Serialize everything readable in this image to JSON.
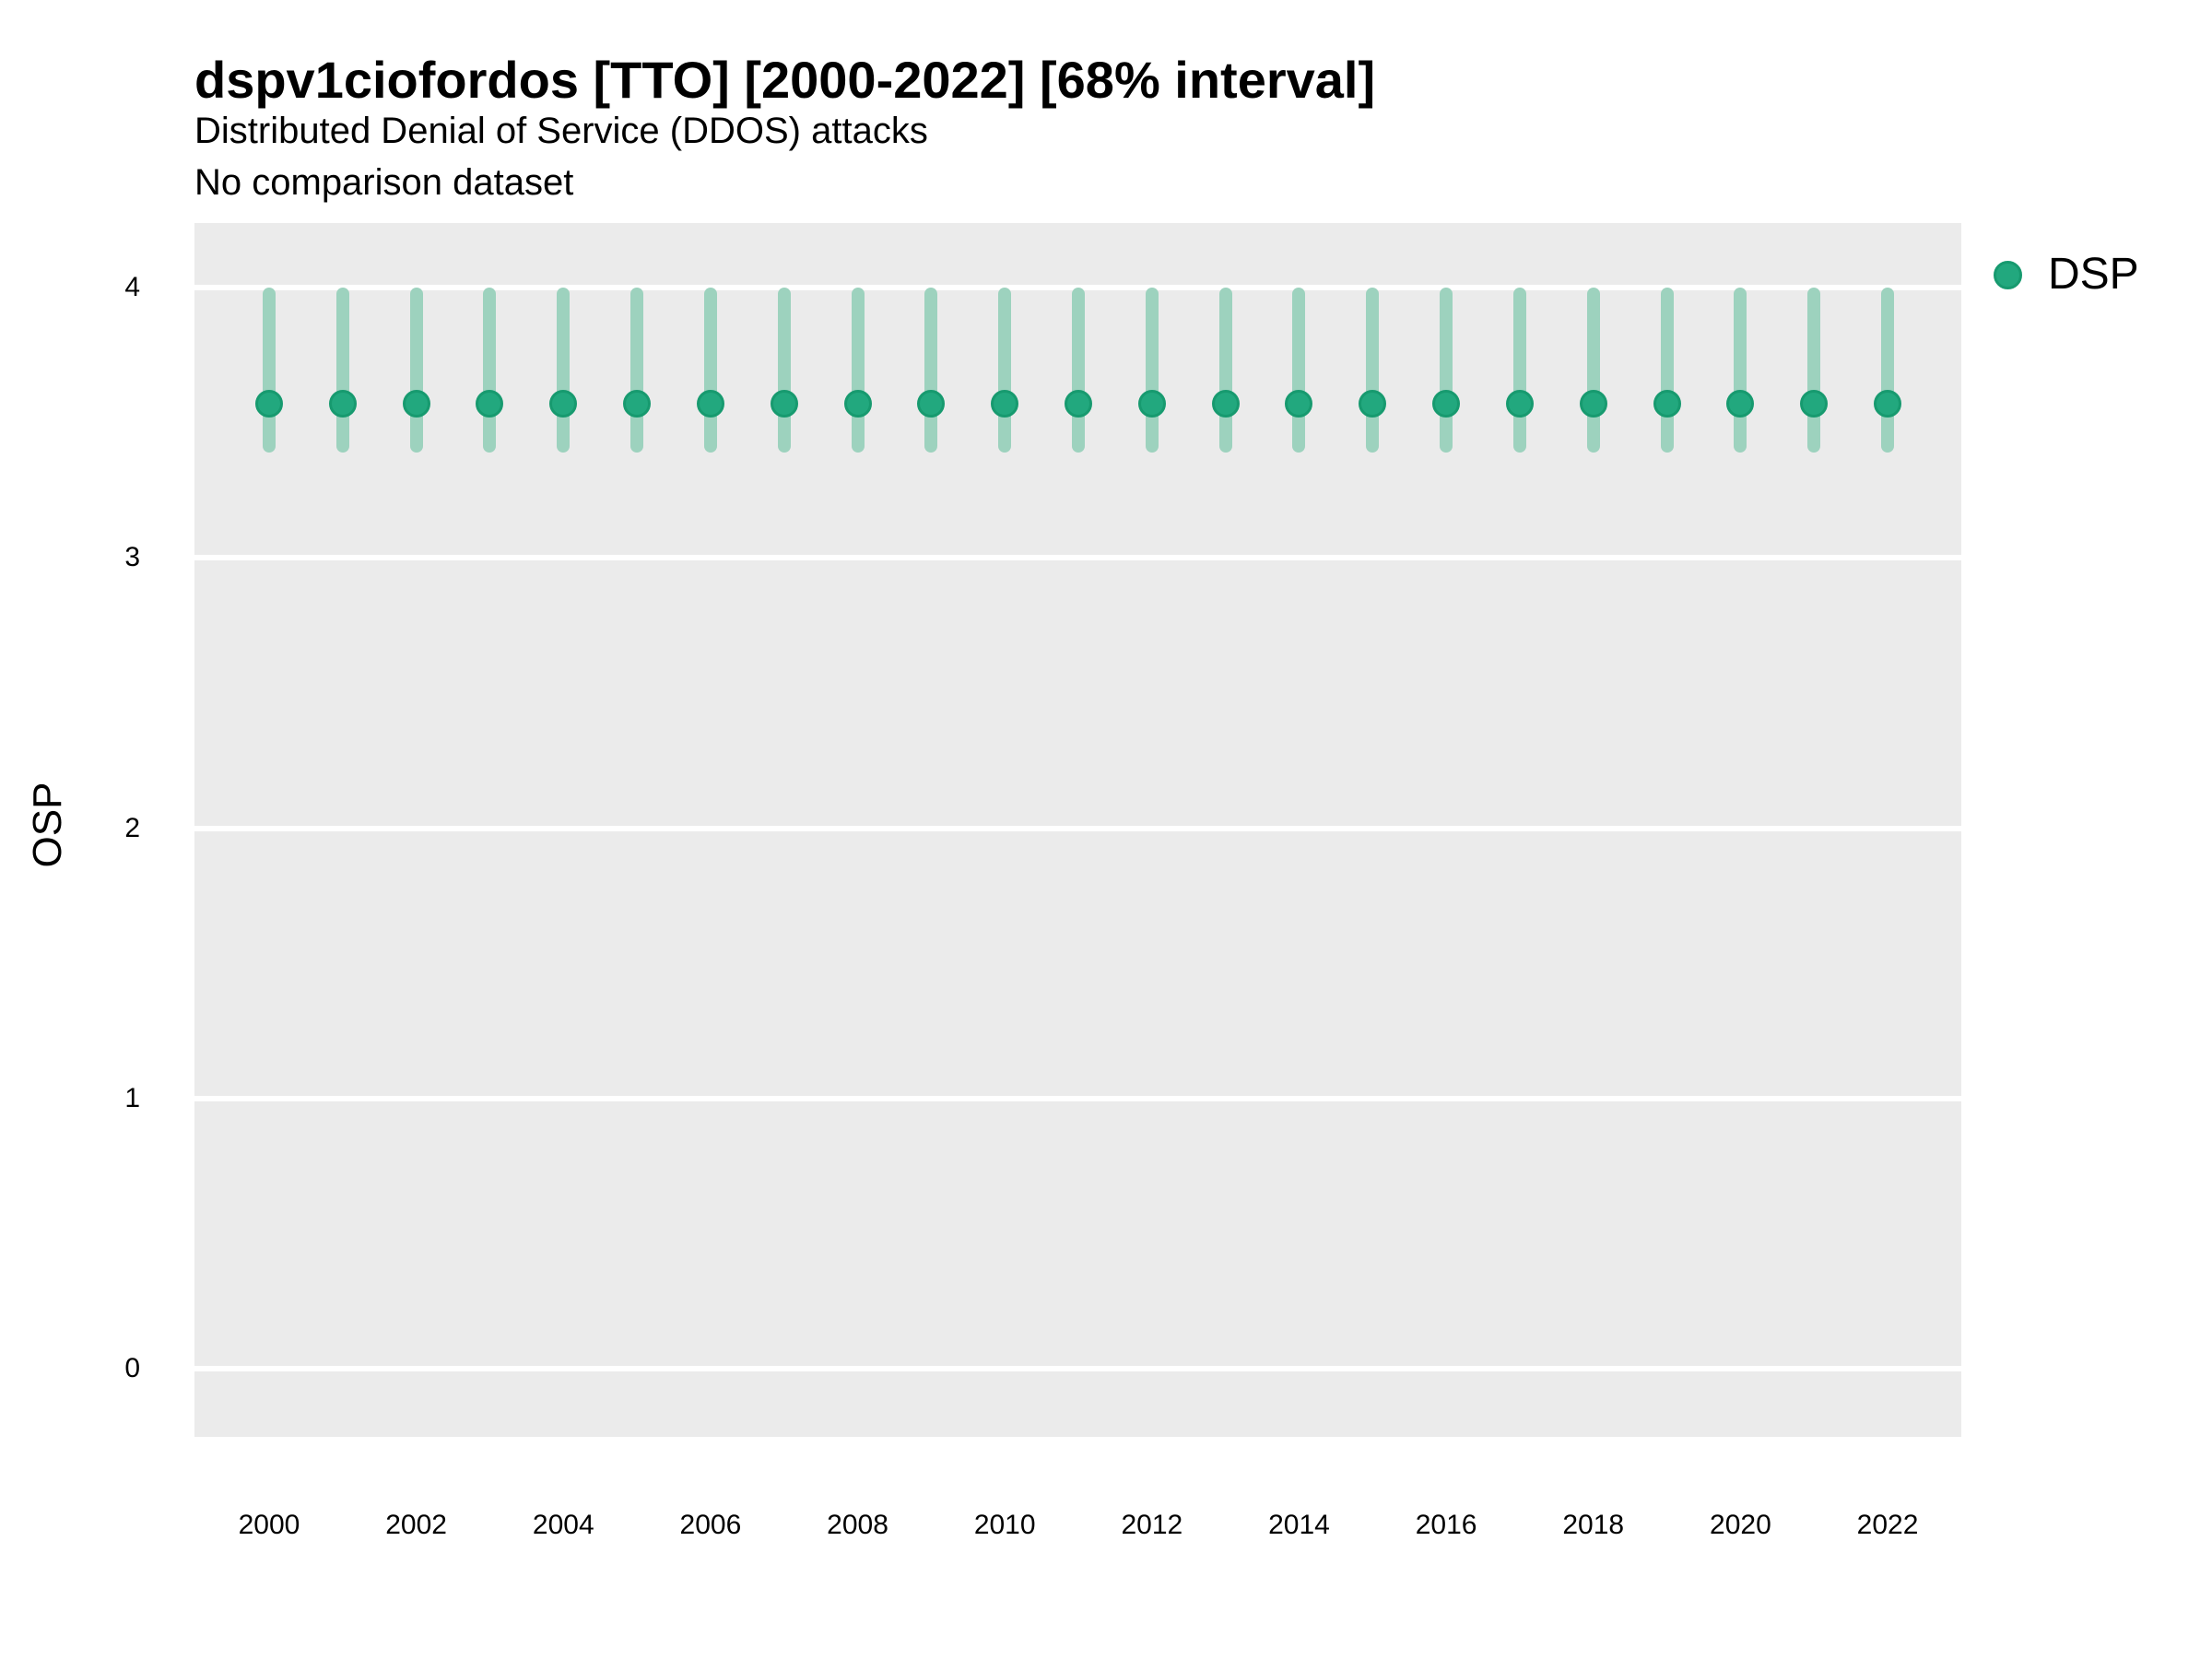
{
  "header": {
    "title": "dspv1ciofordos [TTO] [2000-2022] [68% interval]",
    "subtitle": "Distributed Denial of Service (DDOS) attacks",
    "comparison_note": "No comparison dataset"
  },
  "legend": {
    "items": [
      {
        "label": "DSP",
        "color": "#22a87e",
        "border_color": "#179a6f"
      }
    ]
  },
  "chart_data": {
    "type": "scatter",
    "subtype": "pointrange",
    "title": "dspv1ciofordos [TTO] [2000-2022] [68% interval]",
    "subtitle": "Distributed Denial of Service (DDOS) attacks",
    "annotation": "No comparison dataset",
    "xlabel": "",
    "ylabel": "OSP",
    "interval": "68%",
    "x": [
      2000,
      2001,
      2002,
      2003,
      2004,
      2005,
      2006,
      2007,
      2008,
      2009,
      2010,
      2011,
      2012,
      2013,
      2014,
      2015,
      2016,
      2017,
      2018,
      2019,
      2020,
      2021,
      2022
    ],
    "series": [
      {
        "name": "DSP",
        "values": [
          3.57,
          3.57,
          3.57,
          3.57,
          3.57,
          3.57,
          3.57,
          3.57,
          3.57,
          3.57,
          3.57,
          3.57,
          3.57,
          3.57,
          3.57,
          3.57,
          3.57,
          3.57,
          3.57,
          3.57,
          3.57,
          3.57,
          3.57
        ],
        "lower": [
          3.39,
          3.39,
          3.39,
          3.39,
          3.39,
          3.39,
          3.39,
          3.39,
          3.39,
          3.39,
          3.39,
          3.39,
          3.39,
          3.39,
          3.39,
          3.39,
          3.39,
          3.39,
          3.39,
          3.39,
          3.39,
          3.39,
          3.39
        ],
        "upper": [
          4.0,
          4.0,
          4.0,
          4.0,
          4.0,
          4.0,
          4.0,
          4.0,
          4.0,
          4.0,
          4.0,
          4.0,
          4.0,
          4.0,
          4.0,
          4.0,
          4.0,
          4.0,
          4.0,
          4.0,
          4.0,
          4.0,
          4.0
        ]
      }
    ],
    "yticks": [
      4,
      3,
      2,
      1,
      0
    ],
    "xticks": [
      2000,
      2002,
      2004,
      2006,
      2008,
      2010,
      2012,
      2014,
      2016,
      2018,
      2020,
      2022
    ],
    "ylim": [
      -0.25,
      4.24
    ],
    "grid": "horizontal-major-only",
    "legend_position": "top-right",
    "colors": {
      "point_fill": "#22a87e",
      "point_border": "#179a6f",
      "range_bar": "#9dd2be",
      "panel_bg": "#ebebeb",
      "gridline": "#ffffff"
    }
  }
}
